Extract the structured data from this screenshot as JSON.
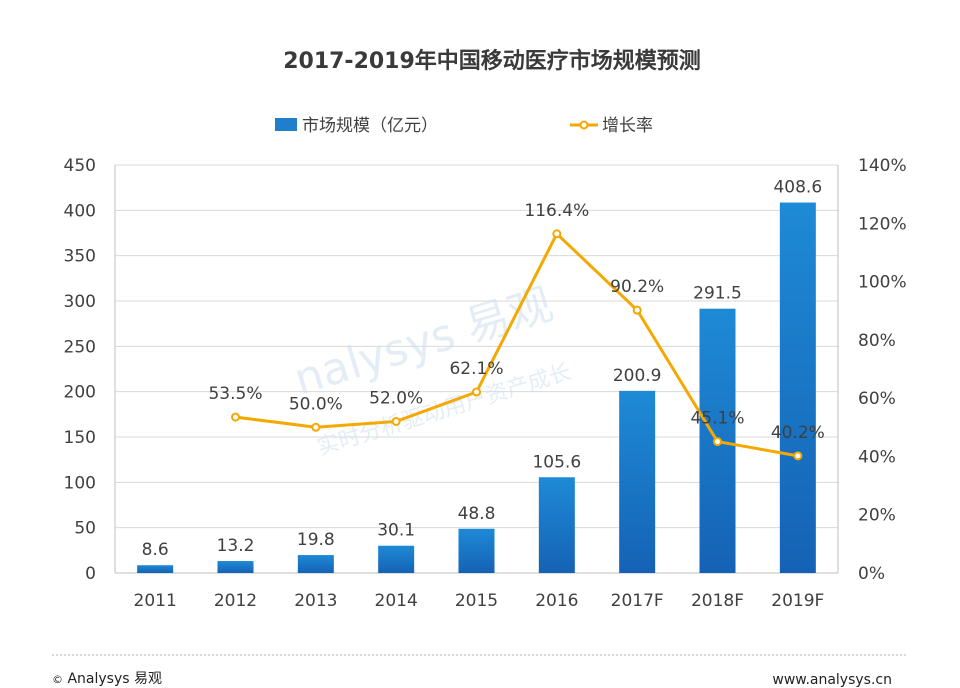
{
  "chart_data": {
    "type": "bar+line",
    "title": "2017-2019年中国移动医疗市场规模预测",
    "categories": [
      "2011",
      "2012",
      "2013",
      "2014",
      "2015",
      "2016",
      "2017F",
      "2018F",
      "2019F"
    ],
    "series": [
      {
        "name": "市场规模（亿元）",
        "type": "bar",
        "axis": "left",
        "values": [
          8.6,
          13.2,
          19.8,
          30.1,
          48.8,
          105.6,
          200.9,
          291.5,
          408.6
        ],
        "labels": [
          "8.6",
          "13.2",
          "19.8",
          "30.1",
          "48.8",
          "105.6",
          "200.9",
          "291.5",
          "408.6"
        ]
      },
      {
        "name": "增长率",
        "type": "line",
        "axis": "right",
        "values": [
          null,
          53.5,
          50.0,
          52.0,
          62.1,
          116.4,
          90.2,
          45.1,
          40.2
        ],
        "labels": [
          "",
          "53.5%",
          "50.0%",
          "52.0%",
          "62.1%",
          "116.4%",
          "90.2%",
          "45.1%",
          "40.2%"
        ]
      }
    ],
    "y_left": {
      "min": 0,
      "max": 450,
      "ticks": [
        "0",
        "50",
        "100",
        "150",
        "200",
        "250",
        "300",
        "350",
        "400",
        "450"
      ]
    },
    "y_right": {
      "min": 0,
      "max": 140,
      "ticks": [
        "0%",
        "20%",
        "40%",
        "60%",
        "80%",
        "100%",
        "120%",
        "140%"
      ]
    },
    "grid": true,
    "legend_position": "top",
    "colors": {
      "bar": "#1f7fcc",
      "bar_dark": "#1565b8",
      "line": "#f5a800",
      "grid": "#d9d9d9"
    }
  },
  "watermark": {
    "brand": "nalysys 易观",
    "slogan": "实时分析驱动用户资产成长"
  },
  "footer": {
    "left": "Analysys 易观",
    "copyright": "©",
    "right": "www.analysys.cn"
  }
}
